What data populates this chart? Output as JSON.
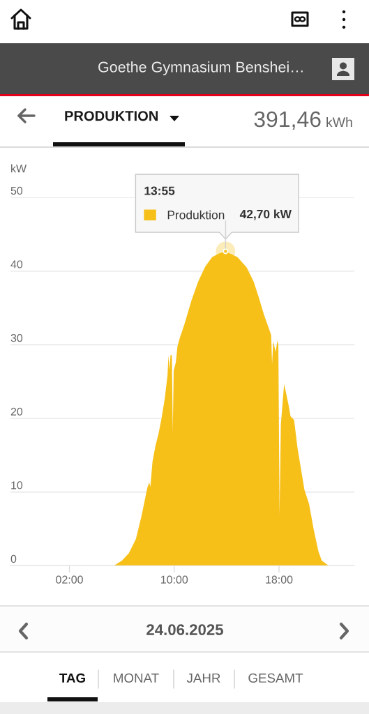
{
  "chart_data": {
    "type": "area",
    "title": "Goethe Gymnasium Benshei…",
    "ylabel": "kW",
    "legend_title": "13:55",
    "legend": "top",
    "grid": "y",
    "annotations": [
      {
        "text": "42,70 kW",
        "x": 13.92,
        "y": 42.7
      },
      "PRODUKTION",
      "391,46",
      "kWh",
      "24.06.2025",
      "TAG",
      "MONAT",
      "JAHR",
      "GESAMT"
    ],
    "x": [
      5.4,
      6.01,
      6.54,
      7.07,
      7.51,
      7.95,
      8.1,
      8.18,
      8.34,
      8.57,
      8.8,
      9.01,
      9.28,
      9.49,
      9.56,
      9.63,
      9.72,
      9.82,
      9.89,
      9.96,
      10.12,
      10.25,
      10.42,
      10.78,
      11.31,
      11.83,
      12.36,
      12.89,
      13.42,
      13.92,
      14.83,
      15.53,
      16.06,
      16.41,
      16.85,
      17.29,
      17.4,
      17.47,
      17.56,
      17.74,
      17.88,
      17.95,
      18.04,
      18.14,
      18.39,
      18.71,
      18.88,
      19.15,
      19.41,
      19.68,
      19.94,
      20.29,
      20.65,
      21.0,
      21.26,
      21.79
    ],
    "series": [
      {
        "name": "Produktion",
        "color": "#f6c018",
        "values": [
          0,
          0.7,
          1.7,
          3.6,
          6.8,
          10.6,
          11.3,
          10.7,
          14.1,
          16.3,
          17.9,
          19.8,
          22.7,
          25.9,
          28.6,
          26.6,
          28.6,
          28.6,
          18.2,
          26.5,
          27.6,
          29.8,
          30.9,
          32.8,
          36.0,
          38.6,
          40.6,
          41.9,
          42.4,
          42.7,
          41.9,
          40.5,
          38.6,
          36.7,
          34.1,
          31.9,
          31.3,
          27.4,
          30.5,
          29.0,
          30.6,
          30.0,
          6.8,
          19.2,
          24.7,
          22.0,
          20.3,
          19.8,
          16.0,
          13.1,
          10.3,
          8.4,
          4.9,
          2.0,
          0.7,
          0
        ]
      }
    ],
    "xlim": [
      -2.5,
      23.75
    ],
    "ylim": [
      0,
      50
    ],
    "xticks": [
      {
        "value": 2,
        "label": "02:00"
      },
      {
        "value": 10,
        "label": "10:00"
      },
      {
        "value": 18,
        "label": "18:00"
      }
    ],
    "yticks": [
      0,
      10,
      20,
      30,
      40,
      50
    ]
  }
}
